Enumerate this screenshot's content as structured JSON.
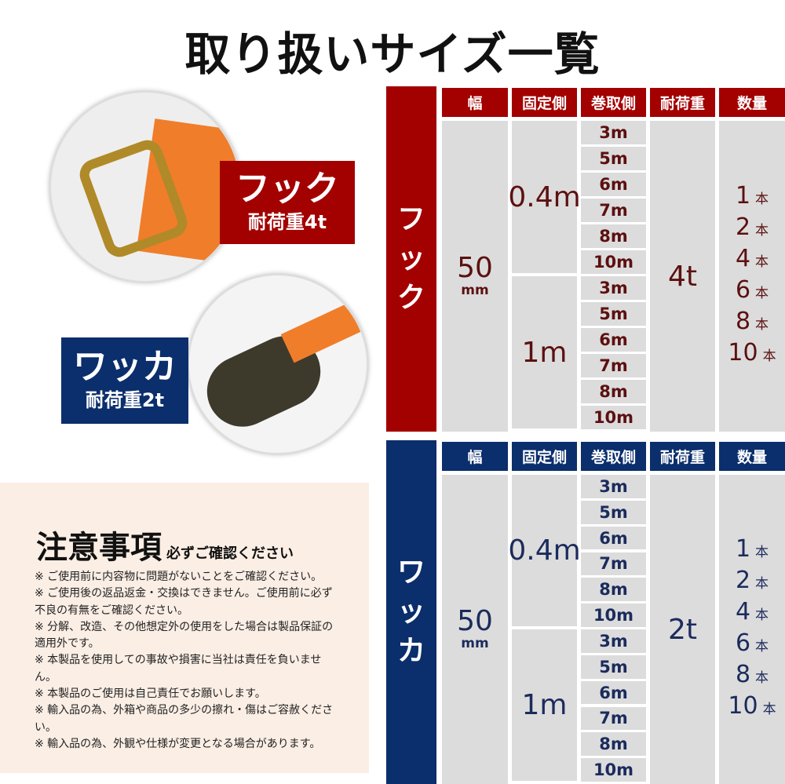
{
  "title": "取り扱いサイズ一覧",
  "colors": {
    "red": "#a30000",
    "blue": "#0b2e6c",
    "red_text": "#5c1010",
    "blue_text": "#1b2b5c",
    "notes_bg": "#fbeee5"
  },
  "hook_tag": {
    "name": "フック",
    "load": "耐荷重4t"
  },
  "ring_tag": {
    "name": "ワッカ",
    "load": "耐荷重2t"
  },
  "notes": {
    "title": "注意事項",
    "subtitle": "必ずご確認ください",
    "items": [
      "※ ご使用前に内容物に問題がないことをご確認ください。",
      "※ ご使用後の返品返金・交換はできません。ご使用前に必ず不良の有無をご確認ください。",
      "※ 分解、改造、その他想定外の使用をした場合は製品保証の適用外です。",
      "※ 本製品を使用しての事故や損害に当社は責任を負いません。",
      "※ 本製品のご使用は自己責任でお願いします。",
      "※ 輸入品の為、外箱や商品の多少の擦れ・傷はご容赦ください。",
      "※ 輸入品の為、外観や仕様が変更となる場合があります。"
    ]
  },
  "headers": [
    "幅",
    "固定側",
    "巻取側",
    "耐荷重",
    "数量"
  ],
  "tables": [
    {
      "label": "フック",
      "width": "50",
      "width_unit": "mm",
      "fixed": [
        "0.4m",
        "1m"
      ],
      "winding": [
        "3m",
        "5m",
        "6m",
        "7m",
        "8m",
        "10m"
      ],
      "load": "4t",
      "qty": [
        "1",
        "2",
        "4",
        "6",
        "8",
        "10"
      ],
      "qty_unit": "本"
    },
    {
      "label": "ワッカ",
      "width": "50",
      "width_unit": "mm",
      "fixed": [
        "0.4m",
        "1m"
      ],
      "winding": [
        "3m",
        "5m",
        "6m",
        "7m",
        "8m",
        "10m"
      ],
      "load": "2t",
      "qty": [
        "1",
        "2",
        "4",
        "6",
        "8",
        "10"
      ],
      "qty_unit": "本"
    }
  ]
}
